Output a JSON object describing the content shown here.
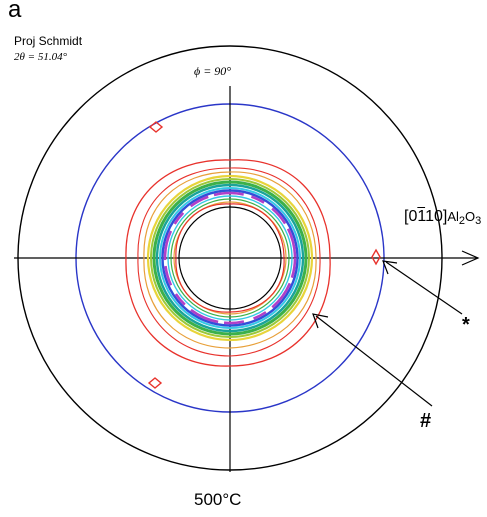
{
  "figure": {
    "panel_letter": "a",
    "projection": "Proj Schmidt",
    "two_theta": "2θ = 51.04°",
    "phi": "ϕ = 90°",
    "direction": {
      "bracket_open": "[0",
      "bar_digit": "1",
      "bracket_close": "10]"
    },
    "substrate": {
      "part1": "Al",
      "sub1": "2",
      "part2": "O",
      "sub2": "3"
    },
    "marker_star": "*",
    "marker_hash": "#",
    "temperature": "500°C"
  },
  "colors": {
    "outer_circle": "#000000",
    "reference_ring": "#2a36c8",
    "contour_outer": "#e8322c",
    "contour_mid_yellow": "#e8d43a",
    "contour_green": "#3cb04a",
    "contour_teal": "#1aa39a",
    "contour_cyan": "#35c8e6",
    "contour_blue": "#3050d8",
    "contour_peak": "#b040c8",
    "spot": "#e8322c"
  },
  "icons": [
    "rhombus-spot-icon",
    "arrow-pointer-icon"
  ]
}
